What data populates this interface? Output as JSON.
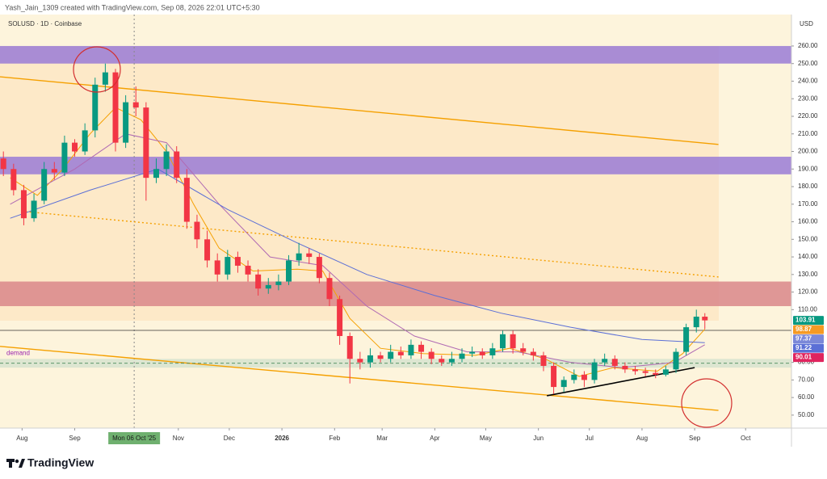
{
  "header": "Yash_Jain_1309 created with TradingView.com, Sep 08, 2026 22:01 UTC+5:30",
  "brand": "TradingView",
  "chart_data": {
    "type": "candlestick",
    "title": "SOLUSD · 1D · Coinbase",
    "y_axis_label": "USD",
    "up_color": "#089981",
    "down_color": "#f23645",
    "xlim": [
      "2025-07-19",
      "2026-10-28"
    ],
    "ylim": [
      42.6,
      277.9
    ],
    "xticks": [
      {
        "value": "2025-08-01",
        "label": "Aug"
      },
      {
        "value": "2025-09-01",
        "label": "Sep"
      },
      {
        "value": "2025-11-01",
        "label": "Nov"
      },
      {
        "value": "2025-12-01",
        "label": "Dec"
      },
      {
        "value": "2026-01-01",
        "label": "2026"
      },
      {
        "value": "2026-02-01",
        "label": "Feb"
      },
      {
        "value": "2026-03-01",
        "label": "Mar"
      },
      {
        "value": "2026-04-01",
        "label": "Apr"
      },
      {
        "value": "2026-05-01",
        "label": "May"
      },
      {
        "value": "2026-06-01",
        "label": "Jun"
      },
      {
        "value": "2026-07-01",
        "label": "Jul"
      },
      {
        "value": "2026-08-01",
        "label": "Aug"
      },
      {
        "value": "2026-09-01",
        "label": "Sep"
      },
      {
        "value": "2026-10-01",
        "label": "Oct"
      }
    ],
    "yticks": [
      {
        "value": 50,
        "label": "50.00"
      },
      {
        "value": 60,
        "label": "60.00"
      },
      {
        "value": 70,
        "label": "70.00"
      },
      {
        "value": 80,
        "label": "80.00"
      },
      {
        "value": 110,
        "label": "110.00"
      },
      {
        "value": 120,
        "label": "120.00"
      },
      {
        "value": 130,
        "label": "130.00"
      },
      {
        "value": 140,
        "label": "140.00"
      },
      {
        "value": 150,
        "label": "150.00"
      },
      {
        "value": 160,
        "label": "160.00"
      },
      {
        "value": 170,
        "label": "170.00"
      },
      {
        "value": 180,
        "label": "180.00"
      },
      {
        "value": 190,
        "label": "190.00"
      },
      {
        "value": 200,
        "label": "200.00"
      },
      {
        "value": 210,
        "label": "210.00"
      },
      {
        "value": 220,
        "label": "220.00"
      },
      {
        "value": 230,
        "label": "230.00"
      },
      {
        "value": 240,
        "label": "240.00"
      },
      {
        "value": 250,
        "label": "250.00"
      },
      {
        "value": 260,
        "label": "260.00"
      }
    ],
    "crosshair": {
      "value": "2025-10-06",
      "label": "Mon 06 Oct '25"
    },
    "x": [
      "2025-07-21",
      "2025-07-27",
      "2025-08-02",
      "2025-08-08",
      "2025-08-14",
      "2025-08-20",
      "2025-08-26",
      "2025-09-01",
      "2025-09-07",
      "2025-09-13",
      "2025-09-19",
      "2025-09-25",
      "2025-10-01",
      "2025-10-07",
      "2025-10-13",
      "2025-10-19",
      "2025-10-25",
      "2025-10-31",
      "2025-11-06",
      "2025-11-12",
      "2025-11-18",
      "2025-11-24",
      "2025-11-30",
      "2025-12-06",
      "2025-12-12",
      "2025-12-18",
      "2025-12-24",
      "2025-12-30",
      "2026-01-05",
      "2026-01-11",
      "2026-01-17",
      "2026-01-23",
      "2026-01-29",
      "2026-02-04",
      "2026-02-10",
      "2026-02-16",
      "2026-02-22",
      "2026-02-28",
      "2026-03-06",
      "2026-03-12",
      "2026-03-18",
      "2026-03-24",
      "2026-03-30",
      "2026-04-05",
      "2026-04-11",
      "2026-04-17",
      "2026-04-23",
      "2026-04-29",
      "2026-05-05",
      "2026-05-11",
      "2026-05-17",
      "2026-05-23",
      "2026-05-29",
      "2026-06-04",
      "2026-06-10",
      "2026-06-16",
      "2026-06-22",
      "2026-06-28",
      "2026-07-04",
      "2026-07-10",
      "2026-07-16",
      "2026-07-22",
      "2026-07-28",
      "2026-08-03",
      "2026-08-09",
      "2026-08-15",
      "2026-08-21",
      "2026-08-27",
      "2026-09-02",
      "2026-09-07"
    ],
    "open": [
      196,
      190,
      178,
      162,
      172,
      190,
      188,
      205,
      200,
      212,
      238,
      245,
      205,
      228,
      225,
      185,
      190,
      200,
      185,
      160,
      150,
      138,
      130,
      140,
      135,
      130,
      122,
      124,
      126,
      138,
      142,
      140,
      128,
      116,
      95,
      82,
      80,
      84,
      82,
      86,
      84,
      90,
      86,
      82,
      80,
      82,
      85,
      86,
      84,
      88,
      96,
      88,
      86,
      84,
      78,
      66,
      70,
      73,
      70,
      80,
      82,
      78,
      76,
      75,
      74,
      73,
      76,
      86,
      100,
      106
    ],
    "high": [
      200,
      193,
      181,
      176,
      194,
      194,
      209,
      207,
      216,
      242,
      250,
      247,
      232,
      237,
      228,
      196,
      204,
      203,
      190,
      164,
      155,
      142,
      144,
      143,
      138,
      133,
      128,
      130,
      141,
      148,
      145,
      142,
      131,
      118,
      97,
      86,
      88,
      86,
      90,
      89,
      93,
      92,
      88,
      84,
      86,
      88,
      89,
      88,
      91,
      98,
      98,
      91,
      88,
      86,
      80,
      72,
      76,
      75,
      82,
      85,
      84,
      80,
      78,
      77,
      76,
      78,
      88,
      102,
      110,
      108
    ],
    "low": [
      186,
      175,
      158,
      160,
      170,
      184,
      186,
      197,
      198,
      208,
      234,
      200,
      202,
      220,
      172,
      182,
      186,
      182,
      156,
      145,
      134,
      126,
      127,
      131,
      126,
      118,
      119,
      121,
      124,
      135,
      136,
      125,
      112,
      90,
      68,
      76,
      77,
      80,
      80,
      82,
      82,
      82,
      79,
      78,
      78,
      80,
      83,
      82,
      82,
      86,
      85,
      84,
      81,
      75,
      62,
      63,
      68,
      66,
      68,
      78,
      76,
      74,
      73,
      72,
      71,
      72,
      74,
      84,
      97,
      99
    ],
    "close": [
      190,
      178,
      162,
      172,
      190,
      188,
      205,
      200,
      212,
      238,
      245,
      205,
      228,
      225,
      185,
      190,
      200,
      185,
      160,
      150,
      138,
      130,
      140,
      135,
      130,
      122,
      124,
      126,
      138,
      142,
      140,
      128,
      116,
      95,
      82,
      80,
      84,
      82,
      86,
      84,
      90,
      86,
      82,
      80,
      82,
      85,
      86,
      84,
      88,
      96,
      88,
      86,
      84,
      78,
      66,
      70,
      73,
      70,
      80,
      82,
      78,
      76,
      75,
      74,
      73,
      76,
      86,
      100,
      106,
      103.91
    ],
    "series": [
      {
        "color": "#f5a000",
        "x": [
          "2025-07-25",
          "2025-08-10",
          "2025-08-25",
          "2025-09-10",
          "2025-09-25",
          "2025-10-10",
          "2025-10-25",
          "2025-11-10",
          "2025-11-25",
          "2025-12-15",
          "2026-01-10",
          "2026-01-25",
          "2026-02-10",
          "2026-02-28",
          "2026-03-25",
          "2026-04-25",
          "2026-05-15",
          "2026-06-05",
          "2026-06-25",
          "2026-07-15",
          "2026-08-10",
          "2026-08-25",
          "2026-09-07"
        ],
        "values": [
          185,
          175,
          190,
          210,
          225,
          218,
          200,
          170,
          145,
          132,
          133,
          132,
          105,
          88,
          85,
          84,
          88,
          82,
          72,
          77,
          75,
          85,
          98.87
        ]
      },
      {
        "color": "#b06ab3",
        "x": [
          "2025-07-25",
          "2025-09-01",
          "2025-10-01",
          "2025-10-25",
          "2025-11-25",
          "2025-12-25",
          "2026-01-25",
          "2026-02-20",
          "2026-03-20",
          "2026-04-20",
          "2026-05-20",
          "2026-06-20",
          "2026-07-20",
          "2026-08-20",
          "2026-09-07"
        ],
        "values": [
          170,
          190,
          210,
          205,
          170,
          140,
          135,
          112,
          95,
          86,
          86,
          80,
          77,
          80,
          90.01
        ]
      },
      {
        "color": "#5b6fd6",
        "x": [
          "2025-07-25",
          "2025-09-10",
          "2025-10-20",
          "2025-11-30",
          "2026-01-10",
          "2026-02-20",
          "2026-04-01",
          "2026-05-10",
          "2026-06-20",
          "2026-08-01",
          "2026-09-07"
        ],
        "values": [
          162,
          178,
          190,
          167,
          148,
          130,
          118,
          108,
          100,
          93,
          91.22
        ]
      }
    ],
    "zones": [
      {
        "range": [
          250,
          260
        ],
        "color": "#9a7bd6"
      },
      {
        "range": [
          187,
          197
        ],
        "color": "#9a7bd6"
      },
      {
        "range": [
          112,
          126
        ],
        "color": "#d9868a"
      },
      {
        "range": [
          77,
          82
        ],
        "color": "#d7e3cf",
        "label": "demand"
      }
    ],
    "trend_lines": [
      {
        "x": [
          "2025-07-19",
          "2026-09-15"
        ],
        "y": [
          242.5,
          204
        ],
        "color": "#f5a000",
        "dash": false
      },
      {
        "x": [
          "2025-07-19",
          "2026-09-15"
        ],
        "y": [
          89.1,
          52.7
        ],
        "color": "#f5a000",
        "dash": false
      },
      {
        "x": [
          "2025-08-03",
          "2026-09-15"
        ],
        "y": [
          165.8,
          128.6
        ],
        "color": "#f5a000",
        "dash": true
      },
      {
        "x": [
          "2026-06-06",
          "2026-09-01"
        ],
        "y": [
          61,
          77
        ],
        "color": "#000000",
        "dash": false
      }
    ],
    "hlines": [
      {
        "value": 98.2,
        "color": "#333333",
        "dash": false
      },
      {
        "value": 79.5,
        "color": "#4a8a5a",
        "dash": true
      }
    ],
    "price_tags": [
      {
        "value": 103.91,
        "color": "#089981"
      },
      {
        "value": 98.87,
        "color": "#f59a23"
      },
      {
        "value": 97.37,
        "color": "#7b88d8"
      },
      {
        "value": 91.22,
        "color": "#5b6fd6"
      },
      {
        "value": 90.01,
        "color": "#e0245e"
      }
    ]
  }
}
